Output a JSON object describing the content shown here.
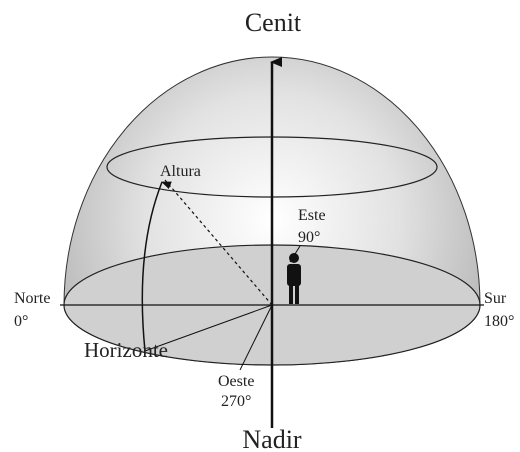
{
  "labels": {
    "zenith": "Cenit",
    "nadir": "Nadir",
    "altitude": "Altura",
    "horizon": "Horizonte",
    "north": {
      "name": "Norte",
      "degrees": "0°"
    },
    "south": {
      "name": "Sur",
      "degrees": "180°"
    },
    "east": {
      "name": "Este",
      "degrees": "90°"
    },
    "west": {
      "name": "Oeste",
      "degrees": "270°"
    }
  }
}
